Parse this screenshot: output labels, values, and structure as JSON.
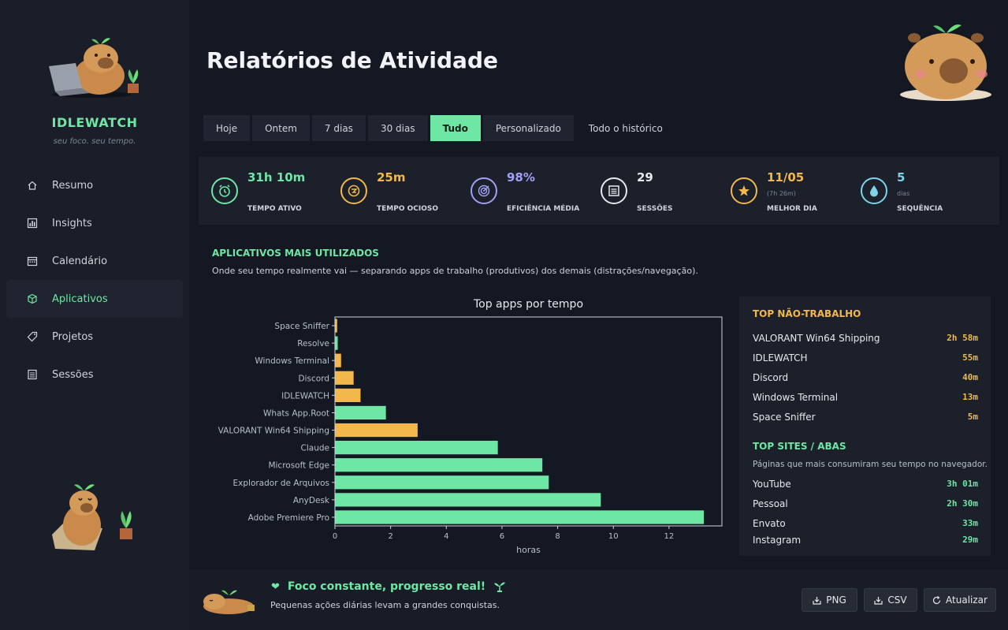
{
  "app": {
    "brand": "IDLEWATCH",
    "tagline": "seu foco. seu tempo."
  },
  "sidebar": {
    "items": [
      {
        "label": "Resumo",
        "icon": "home-icon",
        "active": false
      },
      {
        "label": "Insights",
        "icon": "bar-chart-icon",
        "active": false
      },
      {
        "label": "Calendário",
        "icon": "calendar-icon",
        "active": false
      },
      {
        "label": "Aplicativos",
        "icon": "cube-icon",
        "active": true
      },
      {
        "label": "Projetos",
        "icon": "tag-icon",
        "active": false
      },
      {
        "label": "Sessões",
        "icon": "list-icon",
        "active": false
      }
    ]
  },
  "header": {
    "title": "Relatórios de Atividade"
  },
  "tabs": [
    {
      "label": "Hoje",
      "active": false
    },
    {
      "label": "Ontem",
      "active": false
    },
    {
      "label": "7 dias",
      "active": false
    },
    {
      "label": "30 dias",
      "active": false
    },
    {
      "label": "Tudo",
      "active": true
    },
    {
      "label": "Personalizado",
      "active": false
    },
    {
      "label": "Todo o histórico",
      "active": false
    }
  ],
  "stats": [
    {
      "value": "31h 10m",
      "sub": "",
      "label": "TEMPO ATIVO",
      "color": "#6ee7a4",
      "icon": "alarm-clock-icon"
    },
    {
      "value": "25m",
      "sub": "",
      "label": "TEMPO OCIOSO",
      "color": "#f2b84b",
      "icon": "coffee-icon"
    },
    {
      "value": "98%",
      "sub": "",
      "label": "EFICIÊNCIA MÉDIA",
      "color": "#a59ef5",
      "icon": "target-icon"
    },
    {
      "value": "29",
      "sub": "",
      "label": "SESSÕES",
      "color": "#e6e8ee",
      "icon": "list-icon"
    },
    {
      "value": "11/05",
      "sub": "(7h 26m)",
      "label": "MELHOR DIA",
      "color": "#f2b84b",
      "icon": "star-icon"
    },
    {
      "value": "5",
      "sub": "dias",
      "label": "SEQUÊNCIA",
      "color": "#7fd3e8",
      "icon": "water-drop-icon"
    }
  ],
  "section": {
    "title": "APLICATIVOS MAIS UTILIZADOS",
    "description": "Onde seu tempo realmente vai — separando apps de trabalho (produtivos) dos demais (distrações/navegação)."
  },
  "chart_data": {
    "type": "bar",
    "orientation": "horizontal",
    "title": "Top apps por tempo",
    "xlabel": "horas",
    "ylabel": "",
    "xlim": [
      0,
      13.9
    ],
    "xticks": [
      0,
      2,
      4,
      6,
      8,
      10,
      12
    ],
    "categories": [
      "Space Sniffer",
      "Resolve",
      "Windows Terminal",
      "Discord",
      "IDLEWATCH",
      "Whats App.Root",
      "VALORANT Win64 Shipping",
      "Claude",
      "Microsoft Edge",
      "Explorador de Arquivos",
      "AnyDesk",
      "Adobe Premiere Pro"
    ],
    "values": [
      0.08,
      0.1,
      0.22,
      0.67,
      0.92,
      1.83,
      2.97,
      5.85,
      7.45,
      7.68,
      9.55,
      13.25
    ],
    "productive": [
      false,
      true,
      false,
      false,
      false,
      true,
      false,
      true,
      true,
      true,
      true,
      true
    ],
    "colors": {
      "productive": "#6ee7a4",
      "other": "#f2b84b"
    },
    "grid": false,
    "legend": "none"
  },
  "panel": {
    "nonwork_title": "TOP NÃO-TRABALHO",
    "nonwork": [
      {
        "name": "VALORANT Win64 Shipping",
        "value": "2h 58m"
      },
      {
        "name": "IDLEWATCH",
        "value": "55m"
      },
      {
        "name": "Discord",
        "value": "40m"
      },
      {
        "name": "Windows Terminal",
        "value": "13m"
      },
      {
        "name": "Space Sniffer",
        "value": "5m"
      }
    ],
    "sites_title": "TOP SITES / ABAS",
    "sites_desc": "Páginas que mais consumiram seu tempo no navegador.",
    "sites": [
      {
        "name": "YouTube",
        "value": "3h 01m"
      },
      {
        "name": "Pessoal",
        "value": "2h 30m"
      },
      {
        "name": "Envato",
        "value": "33m"
      },
      {
        "name": "Instagram",
        "value": "29m"
      }
    ]
  },
  "footer": {
    "title": "Foco constante, progresso real!",
    "subtitle": "Pequenas ações diárias levam a grandes conquistas.",
    "buttons": {
      "png": "PNG",
      "csv": "CSV",
      "refresh": "Atualizar"
    }
  },
  "colors": {
    "accent": "#6ee7a4",
    "warning": "#f2b84b",
    "background": "#141823",
    "sidebar": "#1a1e28",
    "card": "#1b202b"
  }
}
